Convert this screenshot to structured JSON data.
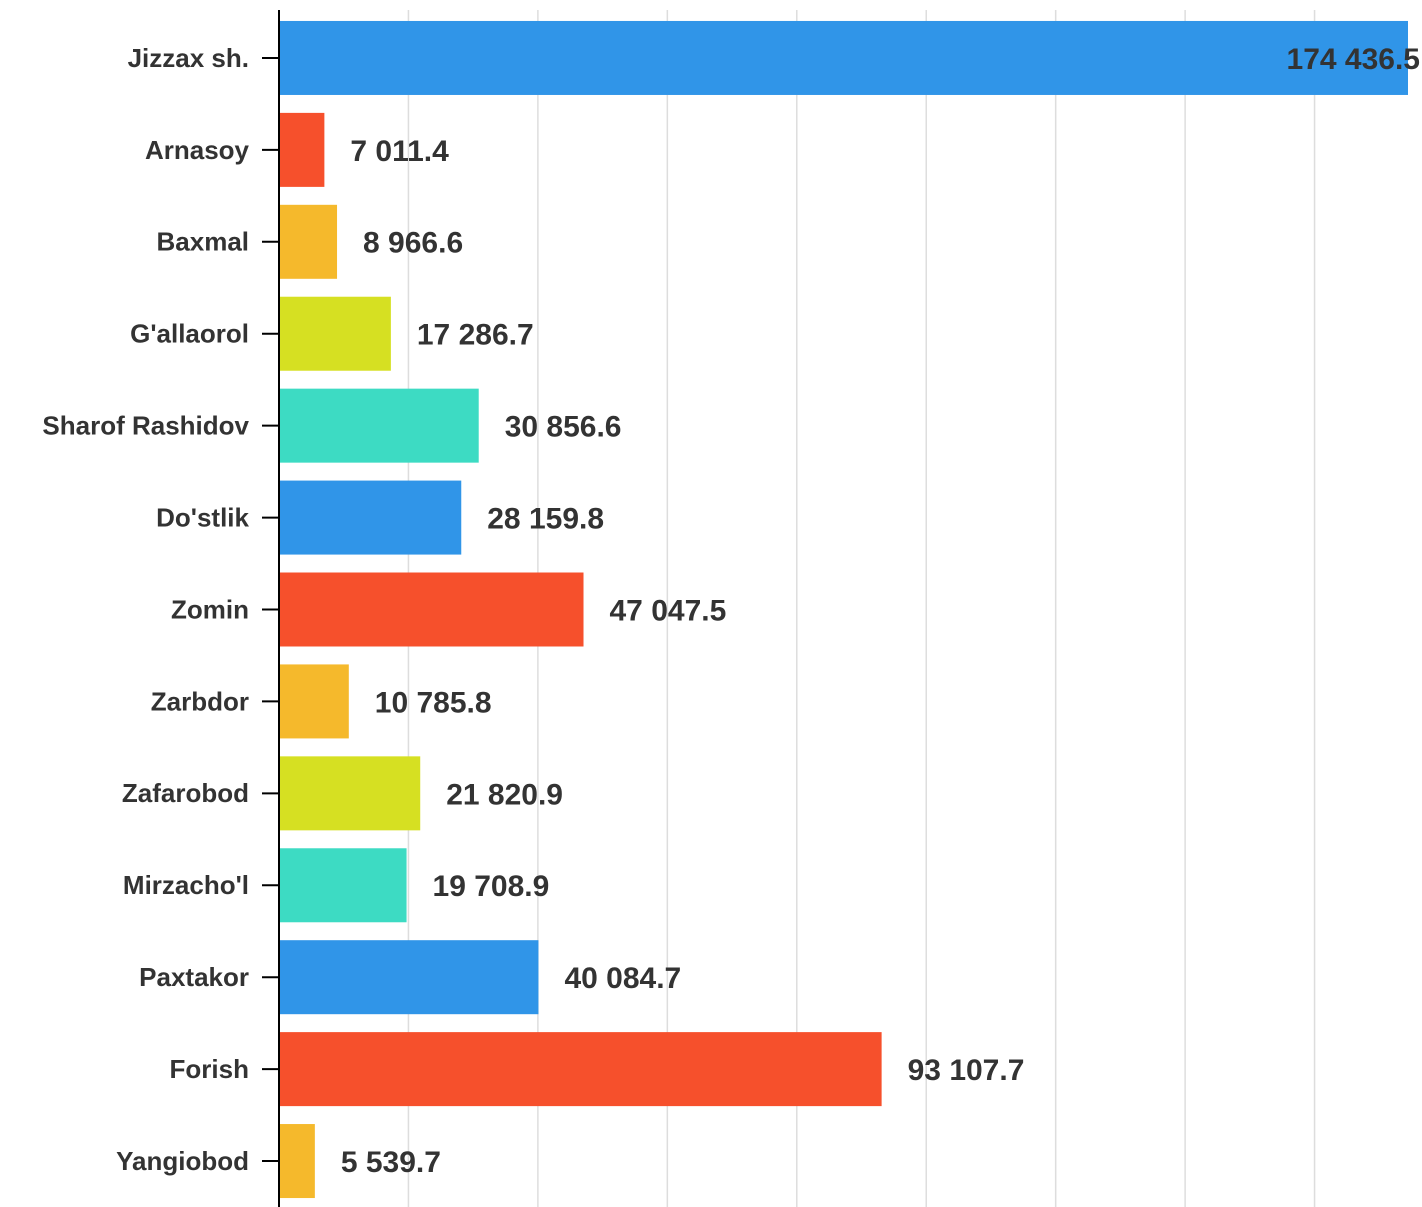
{
  "chart_data": {
    "type": "bar",
    "orientation": "horizontal",
    "categories": [
      "Jizzax sh.",
      "Arnasoy",
      "Baxmal",
      "G'allaorol",
      "Sharof Rashidov",
      "Do'stlik",
      "Zomin",
      "Zarbdor",
      "Zafarobod",
      "Mirzacho'l",
      "Paxtakor",
      "Forish",
      "Yangiobod"
    ],
    "values": [
      174436.5,
      7011.4,
      8966.6,
      17286.7,
      30856.6,
      28159.8,
      47047.5,
      10785.8,
      21820.9,
      19708.9,
      40084.7,
      93107.7,
      5539.7
    ],
    "value_labels": [
      "174 436.5",
      "7 011.4",
      "8 966.6",
      "17 286.7",
      "30 856.6",
      "28 159.8",
      "47 047.5",
      "10 785.8",
      "21 820.9",
      "19 708.9",
      "40 084.7",
      "93 107.7",
      "5 539.7"
    ],
    "colors": [
      "#3095e8",
      "#f6502c",
      "#f5b92c",
      "#d6e022",
      "#3ddbc3",
      "#3095e8",
      "#f6502c",
      "#f5b92c",
      "#d6e022",
      "#3ddbc3",
      "#3095e8",
      "#f6502c",
      "#f5b92c"
    ],
    "xlim": [
      0,
      174436.5
    ],
    "xticks": [
      0,
      20000,
      40000,
      60000,
      80000,
      100000,
      120000,
      140000,
      160000
    ],
    "grid": true
  }
}
